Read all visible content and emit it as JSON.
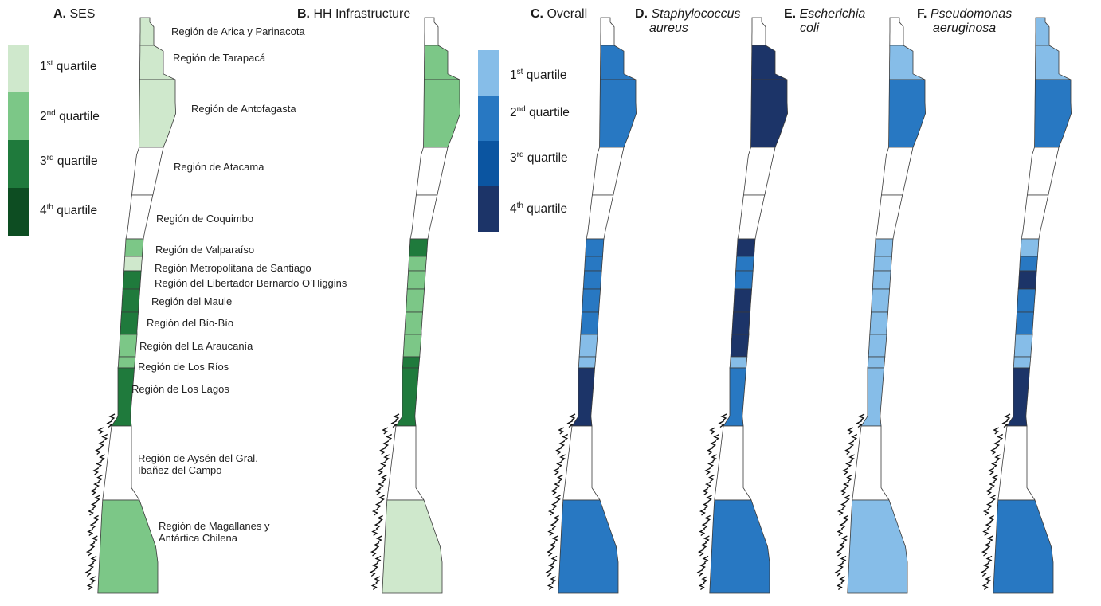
{
  "panels": [
    {
      "letter": "A.",
      "title": "SES",
      "palette": "green",
      "quartiles": [
        1,
        1,
        1,
        0,
        0,
        2,
        1,
        3,
        3,
        3,
        2,
        2,
        3,
        0,
        2
      ]
    },
    {
      "letter": "B.",
      "title": "HH Infrastructure",
      "palette": "green",
      "quartiles": [
        0,
        2,
        2,
        0,
        0,
        3,
        2,
        2,
        2,
        2,
        2,
        3,
        3,
        0,
        1
      ]
    },
    {
      "letter": "C.",
      "title": "Overall",
      "palette": "blue",
      "quartiles": [
        0,
        2,
        2,
        0,
        0,
        2,
        2,
        2,
        2,
        2,
        1,
        1,
        4,
        0,
        2
      ]
    },
    {
      "letter": "D.",
      "title_line1": "Staphylococcus",
      "title_line2": "aureus",
      "palette": "blue",
      "quartiles": [
        0,
        4,
        4,
        0,
        0,
        4,
        2,
        2,
        4,
        4,
        4,
        1,
        2,
        0,
        2
      ]
    },
    {
      "letter": "E.",
      "title_line1": "Escherichia",
      "title_line2": "coli",
      "palette": "blue",
      "quartiles": [
        0,
        1,
        2,
        0,
        0,
        1,
        1,
        1,
        1,
        1,
        1,
        1,
        1,
        0,
        1
      ]
    },
    {
      "letter": "F.",
      "title_line1": "Pseudomonas",
      "title_line2": "aeruginosa",
      "palette": "blue",
      "quartiles": [
        1,
        1,
        2,
        0,
        0,
        1,
        2,
        4,
        2,
        2,
        1,
        1,
        4,
        0,
        2
      ]
    }
  ],
  "legends": {
    "green": [
      {
        "num": "1",
        "sup": "st",
        "word": "quartile",
        "color": "#cfe8cc"
      },
      {
        "num": "2",
        "sup": "nd",
        "word": "quartile",
        "color": "#7cc787"
      },
      {
        "num": "3",
        "sup": "rd",
        "word": "quartile",
        "color": "#1f7a3c"
      },
      {
        "num": "4",
        "sup": "th",
        "word": "quartile",
        "color": "#0d4d22"
      }
    ],
    "blue": [
      {
        "num": "1",
        "sup": "st",
        "word": "quartile",
        "color": "#86bde8"
      },
      {
        "num": "2",
        "sup": "nd",
        "word": "quartile",
        "color": "#2878c2"
      },
      {
        "num": "3",
        "sup": "rd",
        "word": "quartile",
        "color": "#0b55a1"
      },
      {
        "num": "4",
        "sup": "th",
        "word": "quartile",
        "color": "#1c3468"
      }
    ]
  },
  "regions": [
    {
      "name": "Región de Arica y Parinacota"
    },
    {
      "name": "Región de Tarapacá"
    },
    {
      "name": "Región de Antofagasta"
    },
    {
      "name": "Región de Atacama"
    },
    {
      "name": "Región de Coquimbo"
    },
    {
      "name": "Región de Valparaíso"
    },
    {
      "name": "Región Metropolitana de Santiago"
    },
    {
      "name": "Región del Libertador Bernardo O’Higgins"
    },
    {
      "name": "Región del Maule"
    },
    {
      "name": "Región del Bío-Bío"
    },
    {
      "name": "Región del La Araucanía"
    },
    {
      "name": "Región de Los Ríos"
    },
    {
      "name": "Región de Los Lagos"
    },
    {
      "name_line1": "Región de Aysén del Gral.",
      "name_line2": "Ibañez del Campo"
    },
    {
      "name_line1": "Región de Magallanes y",
      "name_line2": "Antártica Chilena"
    }
  ]
}
